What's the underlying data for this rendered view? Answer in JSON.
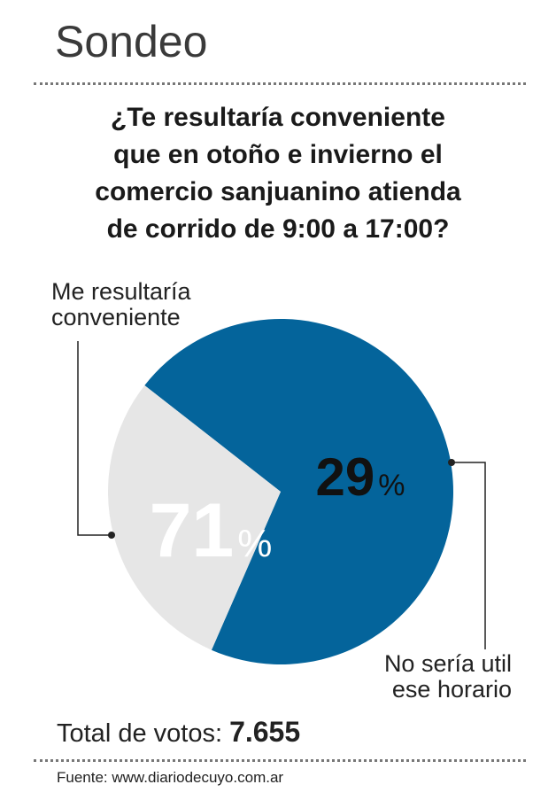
{
  "header": {
    "title": "Sondeo"
  },
  "question_lines": [
    "¿Te resultaría conveniente",
    "que en otoño e invierno el",
    "comercio sanjuanino atienda",
    "de corrido de 9:00 a 17:00?"
  ],
  "chart_data": {
    "type": "pie",
    "series": [
      {
        "label_lines": [
          "Me resultaría",
          "conveniente"
        ],
        "value": 71,
        "display": "71",
        "color": "#04649b",
        "text_color": "#ffffff"
      },
      {
        "label_lines": [
          "No sería util",
          "ese horario"
        ],
        "value": 29,
        "display": "29",
        "color": "#e6e6e6",
        "text_color": "#111111"
      }
    ],
    "unit": "%"
  },
  "footer": {
    "total_label": "Total de votos:",
    "total_value": "7.655",
    "source": "Fuente: www.diariodecuyo.com.ar"
  }
}
